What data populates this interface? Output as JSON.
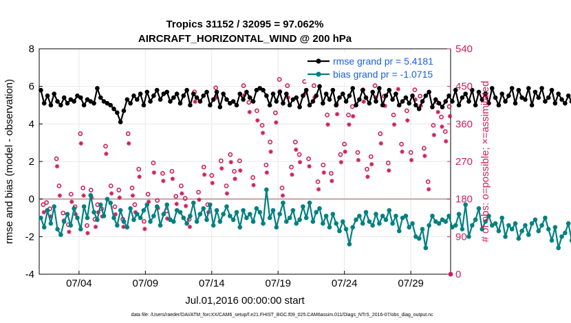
{
  "chart_data": {
    "type": "line",
    "title_line1": "Tropics 31152 / 32095 = 97.062%",
    "title_line2": "AIRCRAFT_HORIZONTAL_WIND @ 200 hPa",
    "xlabel": "Jul.01,2016 00:00:00 start",
    "ylabel_left": "rmse and bias (model - observation)",
    "ylabel_right": "# of obs: o=possible; ×=assimilated",
    "y_left_ticks": [
      "8",
      "6",
      "4",
      "2",
      "0",
      "-2",
      "-4"
    ],
    "y_right_ticks": [
      "540",
      "450",
      "360",
      "270",
      "180",
      "90",
      "0"
    ],
    "x_ticks": [
      "07/04",
      "07/09",
      "07/14",
      "07/19",
      "07/24",
      "07/29"
    ],
    "x_tick_days": [
      3,
      8,
      13,
      18,
      23,
      28
    ],
    "xlim": [
      0,
      31
    ],
    "ylim_left": [
      -4,
      8
    ],
    "ylim_right": [
      0,
      540
    ],
    "legend": [
      "rmse grand pr = 5.4181",
      "bias grand pr = -1.0715"
    ],
    "footnote": "data file: /Users/raeder/DAI/ATM_forcXX/CAM6_setup/f.e21.FHIST_BGC.f09_025.CAM6assim.011/Diags_NTrS_2016-07/obs_diag_output.nc",
    "colors": {
      "rmse": "#000000",
      "bias": "#008080",
      "obs": "#cc1f5c",
      "zero_line": "#c8a0a0"
    },
    "series": [
      {
        "name": "rmse",
        "x_start": 0.125,
        "x_step": 0.25,
        "values": [
          5.8,
          5.1,
          5.5,
          5.0,
          5.6,
          5.2,
          5.0,
          5.4,
          5.1,
          5.3,
          5.2,
          5.5,
          5.4,
          5.0,
          5.3,
          5.2,
          5.1,
          5.9,
          5.4,
          5.2,
          5.1,
          5.0,
          4.8,
          4.6,
          4.1,
          4.7,
          5.3,
          5.1,
          5.5,
          5.3,
          5.6,
          5.0,
          5.7,
          5.2,
          5.5,
          5.8,
          5.3,
          5.6,
          5.7,
          5.2,
          5.4,
          5.6,
          5.1,
          5.5,
          5.8,
          5.0,
          5.6,
          5.4,
          5.2,
          5.5,
          5.7,
          5.0,
          5.3,
          5.7,
          4.9,
          5.6,
          5.3,
          5.1,
          5.2,
          5.0,
          5.6,
          5.3,
          5.7,
          5.4,
          5.2,
          5.8,
          5.9,
          5.8,
          5.5,
          5.0,
          5.6,
          5.2,
          5.7,
          5.1,
          5.6,
          5.0,
          5.3,
          5.4,
          4.9,
          5.5,
          5.8,
          5.0,
          5.2,
          5.5,
          6.0,
          5.1,
          5.6,
          5.3,
          5.8,
          5.0,
          5.4,
          5.6,
          5.2,
          5.5,
          5.9,
          5.0,
          5.3,
          5.8,
          5.4,
          5.1,
          5.7,
          5.2,
          5.9,
          5.0,
          5.5,
          5.8,
          5.3,
          5.6,
          5.0,
          5.2,
          5.4,
          5.1,
          5.5,
          5.0,
          4.8,
          5.2,
          5.5,
          5.7,
          4.9,
          5.3,
          5.1,
          4.9,
          5.2,
          5.5,
          5.2,
          5.8,
          5.0,
          5.4,
          5.6,
          5.2,
          5.8,
          5.0,
          5.7,
          5.3,
          5.6,
          5.1,
          5.9,
          5.4,
          5.0,
          5.6,
          5.2,
          5.5,
          5.9,
          5.1,
          5.8,
          5.4,
          5.3,
          5.9,
          5.0,
          5.7,
          5.4,
          5.9,
          5.2,
          5.4,
          5.8,
          5.1,
          5.6,
          5.3,
          5.1,
          5.5,
          5.2,
          5.0,
          5.4,
          5.6,
          5.0,
          5.3,
          5.2,
          5.5,
          5.1,
          5.0,
          5.8,
          5.9,
          5.6,
          5.7,
          5.5,
          5.6,
          5.7
        ]
      },
      {
        "name": "bias",
        "x_start": 0.125,
        "x_step": 0.25,
        "values": [
          -1.0,
          -1.5,
          -0.6,
          -1.3,
          -0.4,
          -1.6,
          -1.9,
          -1.2,
          -0.8,
          -1.4,
          -0.5,
          -1.0,
          -1.6,
          -0.4,
          -1.0,
          0.2,
          -0.7,
          -1.1,
          -0.3,
          -0.9,
          0.0,
          -0.2,
          -1.0,
          -1.4,
          -0.6,
          -1.2,
          -1.5,
          -0.5,
          -1.1,
          -0.8,
          -1.0,
          -0.6,
          -0.3,
          -1.2,
          -0.9,
          -0.4,
          -1.4,
          -0.8,
          -0.3,
          -1.1,
          -1.2,
          -0.6,
          -0.7,
          -1.0,
          -1.3,
          -0.9,
          -0.2,
          -1.2,
          -0.8,
          -0.5,
          -1.1,
          -0.3,
          -1.4,
          -0.6,
          -1.2,
          -0.8,
          -0.4,
          -0.9,
          -1.1,
          -0.7,
          -1.5,
          -0.6,
          -1.0,
          -0.8,
          -1.2,
          -0.5,
          -0.7,
          -1.3,
          0.5,
          -1.0,
          -0.6,
          -1.5,
          -0.8,
          -0.2,
          -1.2,
          -1.0,
          -0.6,
          -1.3,
          -1.1,
          -0.4,
          -1.0,
          -0.2,
          -1.2,
          -0.7,
          -0.5,
          -1.3,
          -0.9,
          -1.5,
          -0.8,
          -1.3,
          -1.7,
          -1.2,
          -1.6,
          -2.4,
          -1.5,
          -1.1,
          -0.9,
          -1.3,
          -0.7,
          -1.2,
          -1.4,
          -0.8,
          -1.3,
          -0.9,
          -1.1,
          -0.6,
          -1.3,
          -0.9,
          -1.7,
          -1.0,
          -0.9,
          -1.5,
          -1.3,
          -2.0,
          -2.1,
          -1.6,
          -2.6,
          -1.4,
          -0.9,
          -1.2,
          -1.3,
          -1.1,
          -1.2,
          -0.9,
          -1.5,
          -1.4,
          -0.8,
          -1.6,
          -0.3,
          -2.0,
          -1.4,
          -1.1,
          -0.5,
          -1.6,
          -1.2,
          -0.9,
          -1.4,
          -1.3,
          -1.7,
          -1.0,
          -2.0,
          -1.4,
          -1.6,
          -1.3,
          -2.1,
          -1.7,
          -1.4,
          -1.9,
          -1.3,
          -1.1,
          -1.7,
          -1.4,
          -1.0,
          -1.6,
          -2.2,
          -1.5,
          -2.6,
          -2.0,
          -1.8,
          -1.3,
          -2.2,
          -1.9,
          -1.7,
          -1.0,
          -1.4,
          -1.9,
          -1.2,
          -1.5,
          -1.3,
          -1.4,
          -1.3,
          -1.6,
          -1.2,
          -0.7
        ]
      },
      {
        "name": "possible",
        "x": [
          0.3,
          0.55,
          0.8,
          1.3,
          1.5,
          1.8,
          2.2,
          2.4,
          2.7,
          3.1,
          3.3,
          3.6,
          3.9,
          4.2,
          4.4,
          4.7,
          5.0,
          5.4,
          5.7,
          6.0,
          6.3,
          6.7,
          7.0,
          7.2,
          7.5,
          7.9,
          8.2,
          8.6,
          8.9,
          9.3,
          9.6,
          10.0,
          10.3,
          10.7,
          11.0,
          11.3,
          11.7,
          12.0,
          12.4,
          12.7,
          13.0,
          13.3,
          13.7,
          14.1,
          14.4,
          14.7,
          15.1,
          15.4,
          15.8,
          16.1,
          16.4,
          16.8,
          17.1,
          17.4,
          17.8,
          18.1,
          18.3,
          18.7,
          19.0,
          19.3,
          19.6,
          20.0,
          20.3,
          20.7,
          21.0,
          21.4,
          21.7,
          22.0,
          22.4,
          22.7,
          23.0,
          23.3,
          23.6,
          24.0,
          24.4,
          24.7,
          25.0,
          25.3,
          25.7,
          26.0,
          26.3,
          26.7,
          27.0,
          27.3,
          27.7,
          28.0,
          28.3,
          28.7,
          29.0,
          29.3,
          29.7,
          30.0,
          30.3,
          30.6,
          30.9
        ],
        "values": [
          160,
          165,
          150,
          270,
          205,
          140,
          112,
          185,
          155,
          330,
          200,
          110,
          195,
          125,
          160,
          150,
          300,
          205,
          155,
          195,
          125,
          330,
          200,
          160,
          245,
          120,
          185,
          260,
          170,
          235,
          145,
          240,
          180,
          205,
          175,
          125,
          430,
          190,
          250,
          160,
          230,
          440,
          265,
          205,
          280,
          240,
          265,
          445,
          405,
          225,
          385,
          350,
          255,
          310,
          380,
          460,
          200,
          445,
          250,
          310,
          280,
          455,
          270,
          445,
          215,
          255,
          375,
          235,
          400,
          280,
          305,
          375,
          395,
          285,
          435,
          245,
          275,
          445,
          330,
          420,
          260,
          375,
          465,
          305,
          385,
          285,
          435,
          420,
          295,
          215,
          350,
          405,
          370,
          335,
          395
        ]
      },
      {
        "name": "assimilated",
        "x": [
          0.35,
          0.6,
          0.85,
          1.35,
          1.55,
          1.85,
          2.25,
          2.45,
          2.75,
          3.15,
          3.35,
          3.65,
          3.95,
          4.25,
          4.45,
          4.75,
          5.05,
          5.45,
          5.75,
          6.05,
          6.35,
          6.75,
          7.05,
          7.25,
          7.55,
          7.95,
          8.25,
          8.65,
          8.95,
          9.35,
          9.65,
          10.05,
          10.35,
          10.75,
          11.05,
          11.35,
          11.75,
          12.05,
          12.45,
          12.75,
          13.05,
          13.35,
          13.75,
          14.15,
          14.45,
          14.75,
          15.15,
          15.45,
          15.85,
          16.15,
          16.45,
          16.85,
          17.15,
          17.45,
          17.85,
          18.15,
          18.35,
          18.75,
          19.05,
          19.35,
          19.65,
          20.05,
          20.35,
          20.75,
          21.05,
          21.45,
          21.75,
          22.05,
          22.45,
          22.75,
          23.05,
          23.35,
          23.65,
          24.05,
          24.45,
          24.75,
          25.05,
          25.35,
          25.75,
          26.05,
          26.35,
          26.75,
          27.05,
          27.35,
          27.75,
          28.05,
          28.35,
          28.75,
          29.05,
          29.35,
          29.75,
          30.05,
          30.35,
          30.65,
          30.95
        ],
        "values": [
          155,
          160,
          145,
          265,
          195,
          135,
          108,
          180,
          150,
          320,
          195,
          105,
          190,
          120,
          155,
          145,
          295,
          200,
          150,
          190,
          120,
          320,
          195,
          155,
          240,
          115,
          180,
          250,
          165,
          230,
          140,
          235,
          175,
          200,
          170,
          120,
          420,
          185,
          245,
          155,
          225,
          430,
          260,
          200,
          275,
          235,
          255,
          435,
          395,
          220,
          375,
          345,
          250,
          300,
          370,
          445,
          195,
          430,
          245,
          305,
          275,
          440,
          265,
          430,
          210,
          250,
          365,
          230,
          390,
          275,
          300,
          365,
          385,
          280,
          420,
          240,
          270,
          430,
          320,
          410,
          255,
          365,
          450,
          300,
          375,
          280,
          425,
          410,
          290,
          210,
          340,
          395,
          360,
          325,
          385
        ]
      }
    ]
  }
}
